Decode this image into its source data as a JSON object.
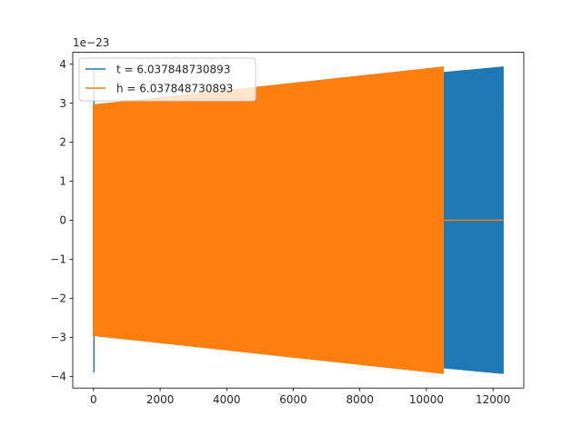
{
  "chart_data": {
    "type": "line",
    "title": "",
    "xlabel": "",
    "ylabel": "",
    "y_offset_label": "1e−23",
    "xlim": [
      -625,
      12925
    ],
    "ylim": [
      -4.3,
      4.3
    ],
    "xticks": [
      0,
      2000,
      4000,
      6000,
      8000,
      10000,
      12000
    ],
    "xtick_labels": [
      "0",
      "2000",
      "4000",
      "6000",
      "8000",
      "10000",
      "12000"
    ],
    "yticks": [
      -4,
      -3,
      -2,
      -1,
      0,
      1,
      2,
      3,
      4
    ],
    "ytick_labels": [
      "−4",
      "−3",
      "−2",
      "−1",
      "0",
      "1",
      "2",
      "3",
      "4"
    ],
    "grid": false,
    "legend_position": "top-left",
    "series": [
      {
        "name": "t = 6.037848730893",
        "color": "#1f77b4",
        "kind": "oscillating-envelope",
        "x_start": 0,
        "x_end": 12300,
        "initial_spike": 3.9,
        "initial_dip": -3.9,
        "envelope_start": 2.95,
        "envelope_end": 3.92,
        "flat_after": null
      },
      {
        "name": "h = 6.037848730893",
        "color": "#ff7f0e",
        "kind": "oscillating-envelope",
        "x_start": 0,
        "x_end": 10500,
        "initial_spike": 2.95,
        "initial_dip": -2.95,
        "envelope_start": 2.95,
        "envelope_end": 3.92,
        "flat_after": {
          "x_start": 10500,
          "x_end": 12300,
          "value": 0
        }
      }
    ]
  }
}
